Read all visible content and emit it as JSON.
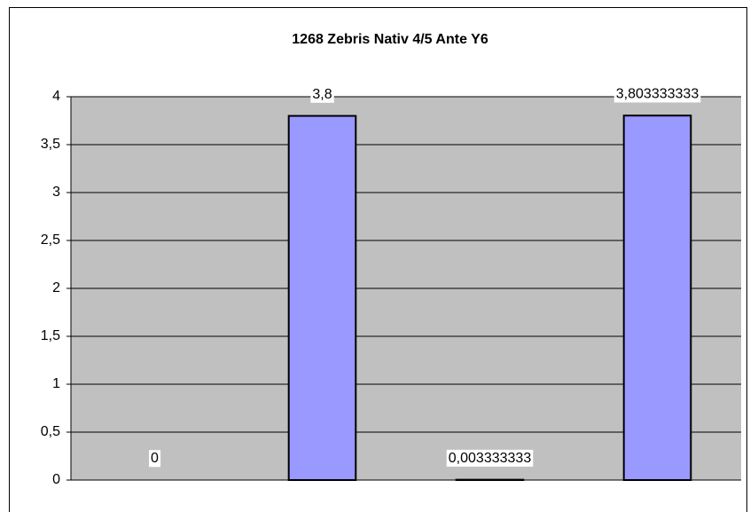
{
  "chart_data": {
    "type": "bar",
    "title": "1268 Zebris Nativ 4/5 Ante Y6",
    "categories": [
      null,
      null,
      null,
      null
    ],
    "values": [
      0,
      3.8,
      0.003333333,
      3.803333333
    ],
    "value_labels": [
      "0",
      "3,8",
      "0,003333333",
      "3,803333333"
    ],
    "color": "#9999ff",
    "ylim": [
      0,
      4
    ],
    "yticks": [
      0,
      {
        "value": 0.5,
        "label": "0,5"
      },
      1,
      {
        "value": 1.5,
        "label": "1,5"
      },
      2,
      {
        "value": 2.5,
        "label": "2,5"
      },
      3,
      {
        "value": 3.5,
        "label": "3,5"
      },
      4
    ],
    "grid": true
  }
}
